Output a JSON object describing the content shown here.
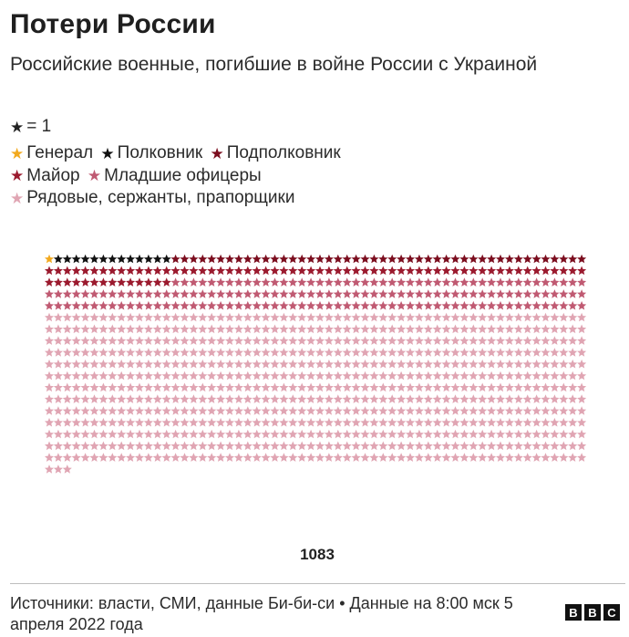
{
  "title": "Потери России",
  "subtitle": "Российские военные, погибшие в войне России с Украиной",
  "unit_label": "= 1",
  "legend": [
    {
      "label": "Генерал",
      "color": "#f2a91e"
    },
    {
      "label": "Полковник",
      "color": "#111111"
    },
    {
      "label": "Подполковник",
      "color": "#7b0d1e"
    },
    {
      "label": "Майор",
      "color": "#9b1a2e"
    },
    {
      "label": "Младшие офицеры",
      "color": "#c05a72"
    },
    {
      "label": "Рядовые, сержанты, прапорщики",
      "color": "#e0a5b3"
    }
  ],
  "total_label": "1083",
  "footer_text": "Источники: власти, СМИ, данные Би-би-си • Данные на 8:00 мск 5 апреля 2022 года",
  "logo_letters": [
    "B",
    "B",
    "C"
  ],
  "chart_data": {
    "type": "pictogram",
    "unit": 1,
    "total": 1083,
    "series": [
      {
        "name": "Генерал",
        "value": 1,
        "color": "#f2a91e"
      },
      {
        "name": "Полковник",
        "value": 13,
        "color": "#111111"
      },
      {
        "name": "Подполковник",
        "value": 46,
        "color": "#7b0d1e"
      },
      {
        "name": "Майор",
        "value": 74,
        "color": "#9b1a2e"
      },
      {
        "name": "Младшие офицеры",
        "value": 166,
        "color": "#c05a72"
      },
      {
        "name": "Рядовые, сержанты, прапорщики",
        "value": 783,
        "color": "#e0a5b3"
      }
    ]
  }
}
